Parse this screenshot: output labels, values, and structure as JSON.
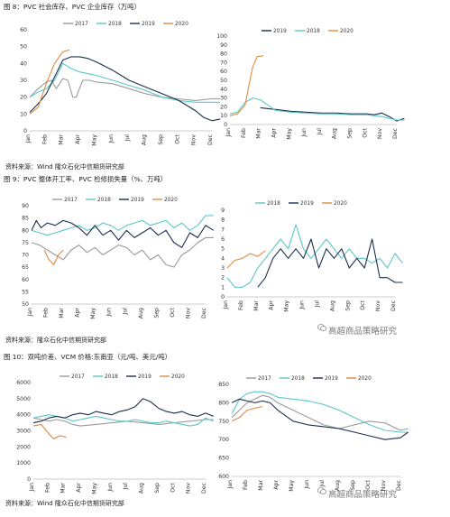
{
  "captions": {
    "fig8": "图 8：PVC 社会库存、PVC 企业库存（万吨）",
    "fig9": "图 9：PVC 整体开工率、PVC 检修损失量（%、万吨）",
    "fig10": "图 10：双吨价差、VCM 价格:东南亚（元/吨、美元/吨）"
  },
  "sources": {
    "s1": "资料来源：Wind 隆众石化中信期货研究部",
    "s2": "资料来源：隆众石化中信期货研究部",
    "s3": "资料来源：Wind 隆众石化中信期货研究部"
  },
  "watermark": {
    "w1": "高超商品策略研究",
    "w2": "高超商品策略研究"
  },
  "colors": {
    "2017": "#9a9a9a",
    "2018": "#5bc7c7",
    "2019": "#1c2d4d",
    "2020": "#e08a40"
  },
  "chart_data": [
    {
      "id": "c1",
      "type": "line",
      "ylim": [
        0,
        60
      ],
      "yticks": [
        0,
        10,
        20,
        30,
        40,
        50,
        60
      ],
      "categories": [
        "Jan",
        "Feb",
        "Mar",
        "Apr",
        "May",
        "Jun",
        "Jul",
        "Aug",
        "Sep",
        "Oct",
        "Nov",
        "Dec"
      ],
      "legend": [
        "2017",
        "2018",
        "2019",
        "2020"
      ],
      "series": [
        {
          "name": "2017",
          "x": [
            0,
            0.5,
            1,
            1.3,
            1.6,
            2,
            2.3,
            2.6,
            2.8,
            3.2,
            3.6,
            4,
            5,
            6,
            7,
            8,
            9,
            10,
            11,
            11.5
          ],
          "y": [
            20,
            25,
            29,
            30,
            25,
            31,
            30,
            20,
            20,
            30,
            30,
            29,
            28,
            25,
            22,
            20,
            19,
            18,
            19,
            19
          ]
        },
        {
          "name": "2018",
          "x": [
            0,
            0.5,
            1,
            1.5,
            2,
            2.5,
            3,
            4,
            5,
            6,
            7,
            8,
            9,
            10,
            11,
            11.5
          ],
          "y": [
            20,
            23,
            25,
            30,
            40,
            37,
            35,
            33,
            30,
            27,
            24,
            20,
            18,
            17,
            17,
            17
          ]
        },
        {
          "name": "2019",
          "x": [
            0,
            0.5,
            1,
            1.5,
            2,
            2.5,
            3,
            3.5,
            4,
            5,
            6,
            7,
            8,
            9,
            10,
            10.5,
            11,
            11.5
          ],
          "y": [
            11,
            16,
            22,
            32,
            42,
            44,
            44,
            43,
            41,
            36,
            30,
            26,
            22,
            18,
            12,
            8,
            6,
            7
          ]
        },
        {
          "name": "2020",
          "x": [
            0,
            0.5,
            1,
            1.5,
            2,
            2.4
          ],
          "y": [
            10,
            14,
            28,
            40,
            47,
            48
          ]
        }
      ]
    },
    {
      "id": "c2",
      "type": "line",
      "ylim": [
        0,
        100
      ],
      "yticks": [
        0,
        10,
        20,
        30,
        40,
        50,
        60,
        70,
        80,
        90,
        100
      ],
      "categories": [
        "Jan",
        "Feb",
        "Mar",
        "Apr",
        "May",
        "Jun",
        "Jul",
        "Aug",
        "Sep",
        "Oct",
        "Nov",
        "Dec"
      ],
      "legend": [
        "2019",
        "2018",
        "2020"
      ],
      "series": [
        {
          "name": "2019",
          "x": [
            2,
            3,
            4,
            5,
            6,
            7,
            8,
            9,
            9.5,
            10,
            10.5,
            11,
            11.5
          ],
          "y": [
            19,
            17,
            15,
            14,
            13,
            13,
            12,
            12,
            11,
            13,
            9,
            4,
            7
          ]
        },
        {
          "name": "2018",
          "x": [
            0,
            0.5,
            1,
            1.5,
            2,
            2.5,
            3,
            4,
            5,
            6,
            7,
            8,
            9,
            10,
            11,
            11.5
          ],
          "y": [
            12,
            14,
            25,
            30,
            28,
            22,
            16,
            14,
            13,
            12,
            12,
            11,
            11,
            9,
            5,
            5
          ]
        },
        {
          "name": "2020",
          "x": [
            0,
            0.5,
            1,
            1.2,
            1.5,
            1.8,
            2,
            2.2
          ],
          "y": [
            10,
            12,
            22,
            40,
            65,
            77,
            77,
            78
          ]
        }
      ]
    },
    {
      "id": "c3",
      "type": "line",
      "ylim": [
        50,
        90
      ],
      "yticks": [
        50,
        55,
        60,
        65,
        70,
        75,
        80,
        85,
        90
      ],
      "categories": [
        "Jan",
        "Feb",
        "Mar",
        "Apr",
        "May",
        "Jun",
        "Jul",
        "Aug",
        "Sep",
        "Oct",
        "Nov",
        "Dec"
      ],
      "legend": [
        "2017",
        "2018",
        "2019",
        "2020"
      ],
      "series": [
        {
          "name": "2017",
          "x": [
            0,
            0.5,
            1,
            1.5,
            2,
            2.5,
            3,
            3.5,
            4,
            4.5,
            5,
            5.5,
            6,
            6.5,
            7,
            7.5,
            8,
            8.5,
            9,
            9.5,
            10,
            10.5,
            11,
            11.5
          ],
          "y": [
            75,
            74,
            72,
            70,
            68,
            72,
            74,
            71,
            73,
            70,
            72,
            74,
            73,
            70,
            72,
            68,
            70,
            66,
            65,
            70,
            72,
            75,
            77,
            77
          ]
        },
        {
          "name": "2018",
          "x": [
            0,
            0.5,
            1,
            1.5,
            2,
            2.5,
            3,
            3.5,
            4,
            4.5,
            5,
            5.5,
            6,
            6.5,
            7,
            7.5,
            8,
            8.5,
            9,
            9.5,
            10,
            10.5,
            11,
            11.5
          ],
          "y": [
            80,
            79,
            78,
            79,
            80,
            81,
            82,
            80,
            81,
            83,
            82,
            80,
            82,
            83,
            84,
            82,
            83,
            84,
            81,
            83,
            80,
            82,
            86,
            86
          ]
        },
        {
          "name": "2019",
          "x": [
            0,
            0.3,
            0.6,
            1,
            1.5,
            2,
            2.5,
            3,
            3.5,
            4,
            4.5,
            5,
            5.5,
            6,
            6.5,
            7,
            7.5,
            8,
            8.5,
            9,
            9.5,
            10,
            10.5,
            11,
            11.5
          ],
          "y": [
            80,
            84,
            81,
            83,
            82,
            84,
            83,
            81,
            78,
            82,
            78,
            80,
            76,
            80,
            77,
            79,
            81,
            78,
            80,
            75,
            73,
            79,
            77,
            82,
            80
          ]
        },
        {
          "name": "2020",
          "x": [
            0.8,
            1.1,
            1.4,
            1.7,
            2
          ],
          "y": [
            72,
            68,
            66,
            70,
            72
          ]
        }
      ]
    },
    {
      "id": "c4",
      "type": "line",
      "ylim": [
        0,
        9
      ],
      "yticks": [
        0,
        1,
        2,
        3,
        4,
        5,
        6,
        7,
        8,
        9
      ],
      "categories": [
        "Jan",
        "Feb",
        "Mar",
        "Apr",
        "May",
        "Jun",
        "Jul",
        "Aug",
        "Sep",
        "Oct",
        "Nov",
        "Dec"
      ],
      "legend": [
        "2018",
        "2019",
        "2020"
      ],
      "series": [
        {
          "name": "2018",
          "x": [
            0,
            0.5,
            1,
            1.5,
            2,
            2.5,
            3,
            3.5,
            4,
            4.5,
            5,
            5.5,
            6,
            6.5,
            7,
            7.5,
            8,
            8.5,
            9,
            9.5,
            10,
            10.5,
            11,
            11.5
          ],
          "y": [
            2,
            1,
            1,
            1.5,
            3,
            4,
            5,
            6,
            5,
            7.5,
            5,
            4,
            5,
            6,
            5,
            4,
            5,
            4,
            4,
            3.5,
            4,
            3,
            4.5,
            3.5
          ]
        },
        {
          "name": "2019",
          "x": [
            2,
            2.5,
            3,
            3.5,
            4,
            4.5,
            5,
            5.5,
            6,
            6.5,
            7,
            7.5,
            8,
            8.5,
            9,
            9.5,
            10,
            10.5,
            11,
            11.5
          ],
          "y": [
            1,
            2,
            4,
            5,
            4,
            5,
            4,
            6,
            3,
            5,
            4,
            5,
            3,
            4,
            3,
            6,
            2,
            2,
            1.5,
            1.5
          ]
        },
        {
          "name": "2020",
          "x": [
            0,
            0.5,
            1,
            1.5,
            2,
            2.5
          ],
          "y": [
            3,
            3.8,
            4,
            4.5,
            4.2,
            4.8
          ]
        }
      ]
    },
    {
      "id": "c5",
      "type": "line",
      "ylim": [
        0,
        6000
      ],
      "yticks": [
        0,
        1000,
        2000,
        3000,
        4000,
        5000,
        6000
      ],
      "categories": [
        "Jan",
        "Feb",
        "Mar",
        "Apr",
        "May",
        "Jun",
        "Jul",
        "Aug",
        "Sep",
        "Oct",
        "Nov",
        "Dec"
      ],
      "legend": [
        "2017",
        "2018",
        "2019",
        "2020"
      ],
      "series": [
        {
          "name": "2017",
          "x": [
            0,
            0.5,
            1,
            1.5,
            2,
            2.5,
            3,
            4,
            5,
            6,
            7,
            8,
            9,
            10,
            11,
            11.5
          ],
          "y": [
            3800,
            3700,
            3600,
            3700,
            3600,
            3400,
            3300,
            3400,
            3500,
            3600,
            3500,
            3400,
            3500,
            3600,
            3700,
            3700
          ]
        },
        {
          "name": "2018",
          "x": [
            0,
            0.5,
            1,
            1.5,
            2,
            2.5,
            3,
            3.5,
            4,
            4.5,
            5,
            5.5,
            6,
            6.5,
            7,
            7.5,
            8,
            8.5,
            9,
            9.5,
            10,
            10.5,
            11,
            11.5
          ],
          "y": [
            3800,
            3900,
            4000,
            3900,
            3800,
            3600,
            3700,
            3800,
            3900,
            3800,
            3700,
            3600,
            3600,
            3700,
            3600,
            3500,
            3500,
            3600,
            3500,
            3400,
            3300,
            3400,
            3800,
            3600
          ]
        },
        {
          "name": "2019",
          "x": [
            0,
            0.5,
            1,
            1.5,
            2,
            2.5,
            3,
            3.5,
            4,
            4.5,
            5,
            5.5,
            6,
            6.5,
            7,
            7.5,
            8,
            8.5,
            9,
            9.5,
            10,
            10.5,
            11,
            11.5
          ],
          "y": [
            3500,
            3600,
            3800,
            3900,
            3800,
            4000,
            4100,
            4000,
            4200,
            4100,
            4000,
            4200,
            4300,
            4500,
            5000,
            4800,
            4400,
            4200,
            4100,
            4200,
            4000,
            3900,
            4100,
            3900
          ]
        },
        {
          "name": "2020",
          "x": [
            0,
            0.5,
            1,
            1.3,
            1.7,
            2.1
          ],
          "y": [
            3300,
            3400,
            2800,
            2500,
            2700,
            2600
          ]
        }
      ]
    },
    {
      "id": "c6",
      "type": "line",
      "ylim": [
        600,
        850
      ],
      "yticks": [
        600,
        650,
        700,
        750,
        800,
        850
      ],
      "categories": [
        "Jan",
        "Feb",
        "Mar",
        "Apr",
        "May",
        "Jun",
        "Jul",
        "Aug",
        "Sep",
        "Oct",
        "Nov",
        "Dec"
      ],
      "legend": [
        "2017",
        "2018",
        "2019",
        "2020"
      ],
      "series": [
        {
          "name": "2017",
          "x": [
            0,
            0.5,
            1,
            1.5,
            2,
            2.5,
            3,
            4,
            5,
            6,
            7,
            8,
            9,
            10,
            11,
            11.5
          ],
          "y": [
            760,
            780,
            800,
            810,
            820,
            815,
            800,
            780,
            760,
            740,
            730,
            740,
            750,
            745,
            725,
            730
          ]
        },
        {
          "name": "2018",
          "x": [
            0,
            0.5,
            1,
            1.5,
            2,
            2.5,
            3,
            4,
            5,
            6,
            7,
            8,
            9,
            10,
            11,
            11.5
          ],
          "y": [
            770,
            810,
            825,
            830,
            830,
            825,
            815,
            810,
            805,
            795,
            780,
            760,
            740,
            725,
            720,
            720
          ]
        },
        {
          "name": "2019",
          "x": [
            0,
            0.5,
            1,
            1.5,
            2,
            2.5,
            3,
            4,
            5,
            6,
            7,
            8,
            9,
            10,
            11,
            11.5
          ],
          "y": [
            800,
            810,
            805,
            800,
            805,
            800,
            780,
            750,
            740,
            735,
            730,
            720,
            710,
            700,
            705,
            720
          ]
        },
        {
          "name": "2020",
          "x": [
            0,
            0.5,
            1,
            1.5,
            2
          ],
          "y": [
            750,
            760,
            780,
            785,
            790
          ]
        }
      ]
    }
  ]
}
